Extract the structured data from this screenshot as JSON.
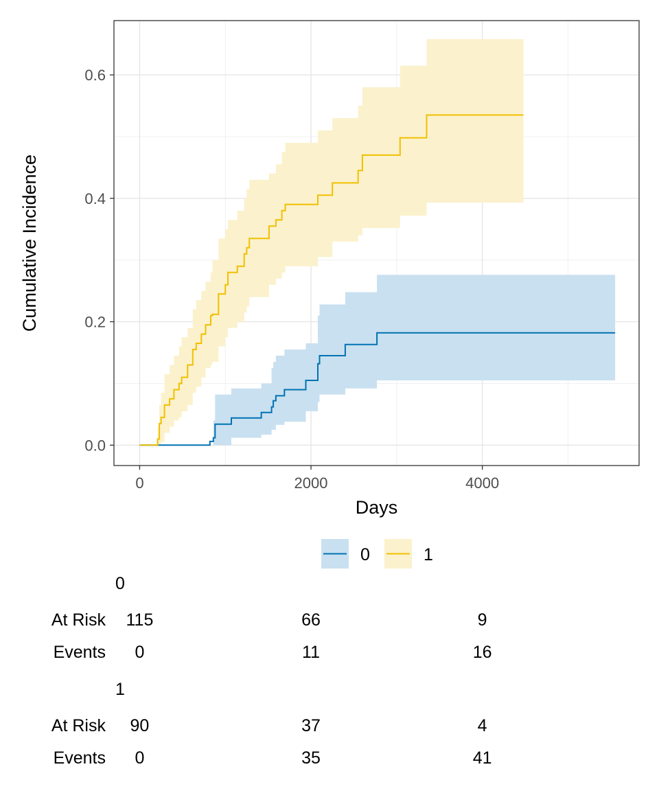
{
  "chart_data": {
    "type": "line",
    "subtype": "step",
    "xlabel": "Days",
    "ylabel": "Cumulative Incidence",
    "xlim": [
      -300,
      5830
    ],
    "ylim": [
      -0.033,
      0.688
    ],
    "x_ticks": [
      0,
      2000,
      4000
    ],
    "y_ticks": [
      0.0,
      0.2,
      0.4,
      0.6
    ],
    "x_tick_labels": [
      "0",
      "2000",
      "4000"
    ],
    "y_tick_labels": [
      "0.0",
      "0.2",
      "0.4",
      "0.6"
    ],
    "grid": true,
    "legend_position": "bottom",
    "series": [
      {
        "name": "0",
        "color": "#0072B2",
        "fill": "#c9e0f0",
        "x": [
          0,
          820,
          860,
          880,
          1070,
          1420,
          1540,
          1560,
          1590,
          1690,
          1940,
          2080,
          2100,
          2230,
          2400,
          2770,
          5550
        ],
        "y": [
          0,
          0.006,
          0.012,
          0.034,
          0.044,
          0.053,
          0.062,
          0.072,
          0.08,
          0.09,
          0.105,
          0.132,
          0.145,
          0.145,
          0.163,
          0.182,
          0.182
        ],
        "lower": [
          0,
          0,
          0,
          0,
          0.012,
          0.017,
          0.025,
          0.025,
          0.033,
          0.038,
          0.055,
          0.07,
          0.082,
          0.082,
          0.092,
          0.105,
          0.105
        ],
        "upper": [
          0,
          0,
          0.04,
          0.082,
          0.092,
          0.1,
          0.125,
          0.135,
          0.145,
          0.155,
          0.165,
          0.21,
          0.228,
          0.228,
          0.248,
          0.276,
          0.276
        ]
      },
      {
        "name": "1",
        "color": "#F0C000",
        "fill": "#fbf1cc",
        "x": [
          0,
          190,
          210,
          230,
          250,
          290,
          350,
          400,
          460,
          490,
          560,
          620,
          660,
          720,
          770,
          830,
          850,
          920,
          1000,
          1030,
          1070,
          1140,
          1220,
          1250,
          1280,
          1510,
          1590,
          1660,
          1700,
          1750,
          2080,
          2250,
          2550,
          2600,
          3040,
          3350,
          4480
        ],
        "y": [
          0,
          0.0,
          0.01,
          0.035,
          0.045,
          0.065,
          0.075,
          0.09,
          0.1,
          0.11,
          0.13,
          0.155,
          0.165,
          0.18,
          0.195,
          0.21,
          0.212,
          0.245,
          0.26,
          0.28,
          0.28,
          0.29,
          0.31,
          0.32,
          0.335,
          0.355,
          0.365,
          0.38,
          0.39,
          0.39,
          0.405,
          0.425,
          0.445,
          0.47,
          0.498,
          0.535,
          0.535
        ],
        "lower": [
          0,
          0.0,
          0.0,
          0.0,
          0.005,
          0.02,
          0.03,
          0.04,
          0.045,
          0.055,
          0.065,
          0.085,
          0.095,
          0.11,
          0.125,
          0.13,
          0.135,
          0.16,
          0.175,
          0.19,
          0.19,
          0.2,
          0.215,
          0.225,
          0.24,
          0.26,
          0.27,
          0.28,
          0.29,
          0.29,
          0.305,
          0.33,
          0.34,
          0.352,
          0.372,
          0.393,
          0.393
        ],
        "upper": [
          0,
          0.0,
          0.03,
          0.065,
          0.085,
          0.115,
          0.13,
          0.145,
          0.16,
          0.175,
          0.19,
          0.22,
          0.235,
          0.25,
          0.265,
          0.28,
          0.3,
          0.335,
          0.35,
          0.365,
          0.365,
          0.38,
          0.4,
          0.415,
          0.43,
          0.44,
          0.455,
          0.475,
          0.49,
          0.49,
          0.51,
          0.53,
          0.55,
          0.58,
          0.615,
          0.658,
          0.658
        ]
      }
    ]
  },
  "legend": {
    "items": [
      {
        "label": "0",
        "color": "#0072B2",
        "fill": "#c9e0f0"
      },
      {
        "label": "1",
        "color": "#F0C000",
        "fill": "#fbf1cc"
      }
    ]
  },
  "risk_table": {
    "row_labels": [
      "At Risk",
      "Events"
    ],
    "times": [
      "0",
      "2000",
      "4000"
    ],
    "groups": [
      {
        "name": "0",
        "at_risk": [
          "115",
          "66",
          "9"
        ],
        "events": [
          "0",
          "11",
          "16"
        ]
      },
      {
        "name": "1",
        "at_risk": [
          "90",
          "37",
          "4"
        ],
        "events": [
          "0",
          "35",
          "41"
        ]
      }
    ]
  }
}
